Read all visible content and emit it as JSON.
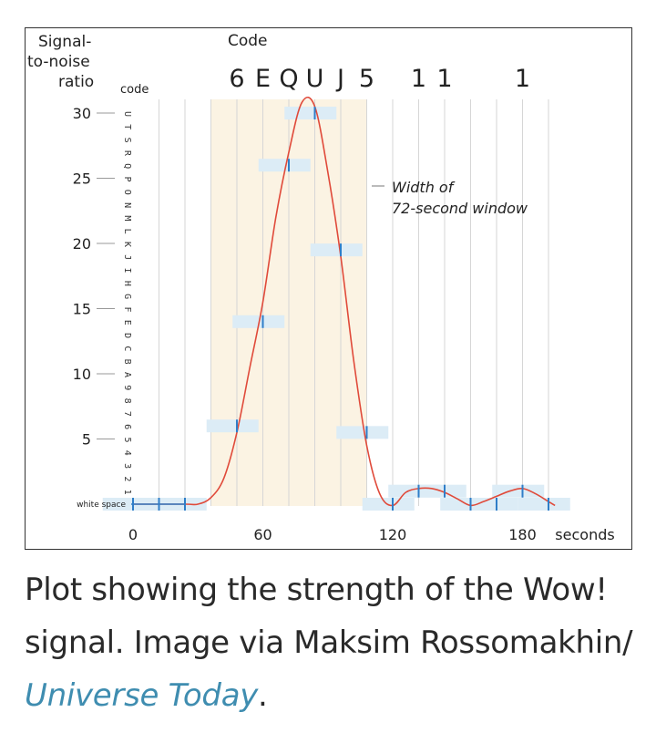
{
  "chart_data": {
    "type": "line",
    "ylabel_lines": [
      "Signal-",
      "to-noise",
      "ratio"
    ],
    "code_axis_label": "code",
    "top_label": "Code",
    "xlabel": "seconds",
    "white_space_label": "white space",
    "xlim": [
      -8,
      205
    ],
    "ylim": [
      0,
      31.5
    ],
    "x_ticks": [
      0,
      60,
      120,
      180
    ],
    "y_ticks": [
      5,
      10,
      15,
      20,
      25,
      30
    ],
    "code_chars": [
      "1",
      "2",
      "3",
      "4",
      "5",
      "6",
      "7",
      "8",
      "9",
      "A",
      "B",
      "C",
      "D",
      "E",
      "F",
      "G",
      "H",
      "I",
      "J",
      "K",
      "L",
      "M",
      "N",
      "O",
      "P",
      "Q",
      "R",
      "S",
      "T",
      "U"
    ],
    "code_sequence": [
      "6",
      "E",
      "Q",
      "U",
      "J",
      "5",
      "1",
      "1",
      "1"
    ],
    "window": {
      "x_start": 36,
      "x_end": 108,
      "annotation": [
        "Width of",
        "72-second window"
      ]
    },
    "grid_x_every": 12,
    "series": [
      {
        "x": [
          0,
          24,
          30,
          36,
          42,
          48,
          54,
          60,
          66,
          72,
          78,
          84,
          90,
          96,
          102,
          108,
          114,
          120,
          126,
          132,
          138,
          144,
          150,
          156,
          162,
          168,
          174,
          180,
          186,
          192,
          195
        ],
        "y": [
          0,
          0,
          0,
          0.5,
          2.0,
          5.5,
          10.5,
          15.5,
          22.0,
          27.0,
          30.8,
          30.5,
          25.5,
          19.0,
          11.0,
          4.5,
          0.8,
          -0.1,
          0.9,
          1.2,
          1.2,
          0.9,
          0.4,
          -0.1,
          0.2,
          0.6,
          1.0,
          1.2,
          0.8,
          0.2,
          -0.1
        ]
      }
    ],
    "samples": [
      {
        "x": 0,
        "y": 0
      },
      {
        "x": 12,
        "y": 0
      },
      {
        "x": 24,
        "y": 0
      },
      {
        "x": 48,
        "y": 6.0
      },
      {
        "x": 60,
        "y": 14.0
      },
      {
        "x": 72,
        "y": 26.0
      },
      {
        "x": 84,
        "y": 30.0
      },
      {
        "x": 96,
        "y": 19.5
      },
      {
        "x": 108,
        "y": 5.5
      },
      {
        "x": 120,
        "y": 0
      },
      {
        "x": 132,
        "y": 1.0
      },
      {
        "x": 144,
        "y": 1.0
      },
      {
        "x": 156,
        "y": 0
      },
      {
        "x": 168,
        "y": 0
      },
      {
        "x": 180,
        "y": 1.0
      },
      {
        "x": 192,
        "y": 0
      }
    ],
    "colors": {
      "line": "#e04a3a",
      "window": "#fbf3e3",
      "sample": "#dcecf6",
      "tick": "#2f7ec8",
      "grid": "#d6d6d6"
    }
  },
  "caption": {
    "text": "Plot showing the strength of the Wow! signal. Image via Maksim Rossomakhin/ ",
    "link": "Universe Today",
    "end": "."
  }
}
